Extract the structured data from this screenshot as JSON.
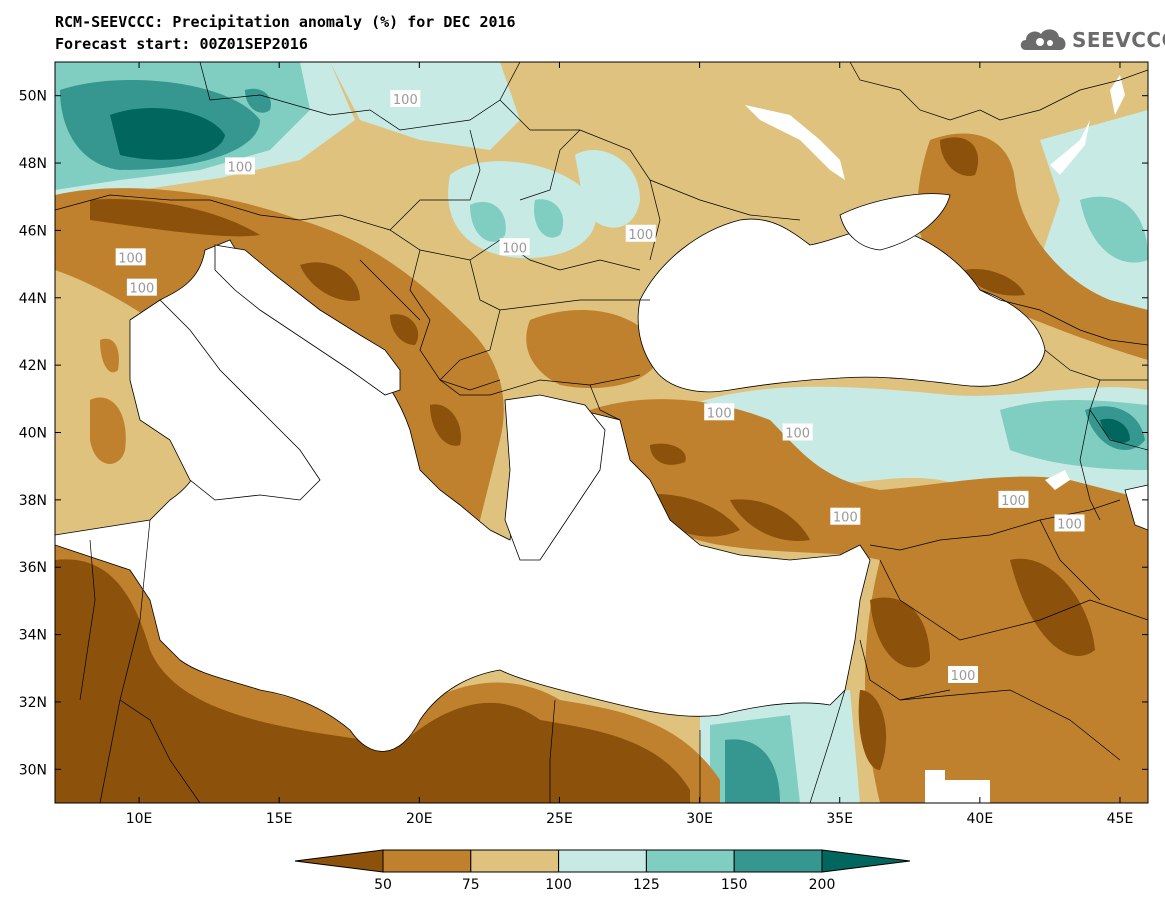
{
  "title_line1": "RCM-SEEVCCC: Precipitation anomaly (%) for DEC 2016",
  "title_line2": "Forecast start: 00Z01SEP2016",
  "logo_text": "SEEVCCC",
  "map": {
    "lon_range": [
      7,
      46
    ],
    "lat_range": [
      29,
      51
    ],
    "lon_ticks": [
      {
        "value": 10,
        "label": "10E"
      },
      {
        "value": 15,
        "label": "15E"
      },
      {
        "value": 20,
        "label": "20E"
      },
      {
        "value": 25,
        "label": "25E"
      },
      {
        "value": 30,
        "label": "30E"
      },
      {
        "value": 35,
        "label": "35E"
      },
      {
        "value": 40,
        "label": "40E"
      },
      {
        "value": 45,
        "label": "45E"
      }
    ],
    "lat_ticks": [
      {
        "value": 50,
        "label": "50N"
      },
      {
        "value": 48,
        "label": "48N"
      },
      {
        "value": 46,
        "label": "46N"
      },
      {
        "value": 44,
        "label": "44N"
      },
      {
        "value": 42,
        "label": "42N"
      },
      {
        "value": 40,
        "label": "40N"
      },
      {
        "value": 38,
        "label": "38N"
      },
      {
        "value": 36,
        "label": "36N"
      },
      {
        "value": 34,
        "label": "34N"
      },
      {
        "value": 32,
        "label": "32N"
      },
      {
        "value": 30,
        "label": "30N"
      }
    ],
    "contour_labels": [
      {
        "text": "100",
        "lon": 19.5,
        "lat": 49.9
      },
      {
        "text": "100",
        "lon": 13.6,
        "lat": 47.9
      },
      {
        "text": "100",
        "lon": 9.7,
        "lat": 45.2
      },
      {
        "text": "100",
        "lon": 10.1,
        "lat": 44.3
      },
      {
        "text": "100",
        "lon": 23.4,
        "lat": 45.5
      },
      {
        "text": "100",
        "lon": 27.9,
        "lat": 45.9
      },
      {
        "text": "100",
        "lon": 30.7,
        "lat": 40.6
      },
      {
        "text": "100",
        "lon": 33.5,
        "lat": 40.0
      },
      {
        "text": "100",
        "lon": 35.2,
        "lat": 37.5
      },
      {
        "text": "100",
        "lon": 41.2,
        "lat": 38.0
      },
      {
        "text": "100",
        "lon": 43.2,
        "lat": 37.3
      },
      {
        "text": "100",
        "lon": 39.4,
        "lat": 32.8
      }
    ]
  },
  "colorbar": {
    "colors": [
      "#8c510a",
      "#bf812d",
      "#dfc27d",
      "#c7eae5",
      "#80cdc1",
      "#35978f",
      "#01665e"
    ],
    "labels": [
      "50",
      "75",
      "100",
      "125",
      "150",
      "200"
    ]
  }
}
